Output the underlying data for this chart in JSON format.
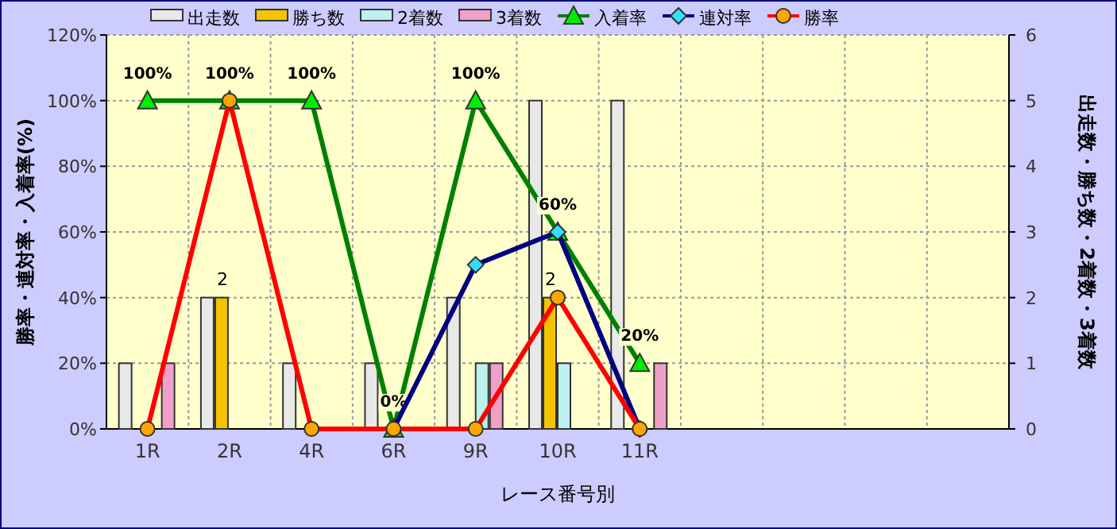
{
  "chart_data": {
    "type": "bar",
    "xlabel": "レース番号別",
    "ylabel": "勝率・連対率・入着率(%)",
    "y2label": "出走数・勝ち数・2着数・3着数",
    "categories": [
      "1R",
      "2R",
      "4R",
      "6R",
      "9R",
      "10R",
      "11R",
      null,
      null,
      null,
      null
    ],
    "series": [
      {
        "name": "出走数",
        "axis": "y2",
        "color": "#e8e8e8",
        "values": [
          1,
          2,
          1,
          1,
          2,
          5,
          5,
          null,
          null,
          null,
          null
        ]
      },
      {
        "name": "勝ち数",
        "axis": "y2",
        "color": "#f5c400",
        "values": [
          0,
          2,
          0,
          0,
          0,
          2,
          0,
          null,
          null,
          null,
          null
        ],
        "value_labels": [
          null,
          "2",
          null,
          null,
          null,
          "2",
          null,
          null,
          null,
          null,
          null
        ]
      },
      {
        "name": "2着数",
        "axis": "y2",
        "color": "#bff0f0",
        "values": [
          0,
          0,
          0,
          0,
          1,
          1,
          0,
          null,
          null,
          null,
          null
        ]
      },
      {
        "name": "3着数",
        "axis": "y2",
        "color": "#f0a0c8",
        "values": [
          1,
          0,
          0,
          0,
          1,
          0,
          1,
          null,
          null,
          null,
          null
        ]
      },
      {
        "name": "入着率",
        "type": "line",
        "axis": "y",
        "color": "#008000",
        "marker": "triangle",
        "values": [
          100,
          100,
          100,
          0,
          100,
          60,
          20,
          null,
          null,
          null,
          null
        ],
        "value_labels": [
          "100%",
          "100%",
          "100%",
          "0%",
          "100%",
          "60%",
          "20%",
          null,
          null,
          null,
          null
        ]
      },
      {
        "name": "連対率",
        "type": "line",
        "axis": "y",
        "color": "#000080",
        "marker": "diamond",
        "values": [
          null,
          null,
          null,
          0,
          50,
          60,
          0,
          null,
          null,
          null,
          null
        ]
      },
      {
        "name": "勝率",
        "type": "line",
        "axis": "y",
        "color": "#ff0000",
        "marker": "circle",
        "values": [
          0,
          100,
          0,
          0,
          0,
          40,
          0,
          null,
          null,
          null,
          null
        ]
      }
    ],
    "ylim": [
      0,
      120
    ],
    "yticks": [
      {
        "value": 0,
        "label": "0%"
      },
      {
        "value": 20,
        "label": "20%"
      },
      {
        "value": 40,
        "label": "40%"
      },
      {
        "value": 60,
        "label": "60%"
      },
      {
        "value": 80,
        "label": "80%"
      },
      {
        "value": 100,
        "label": "100%"
      },
      {
        "value": 120,
        "label": "120%"
      }
    ],
    "y2lim": [
      0,
      6
    ],
    "y2ticks": [
      0,
      1,
      2,
      3,
      4,
      5,
      6
    ],
    "grid": true,
    "legend": "top"
  }
}
